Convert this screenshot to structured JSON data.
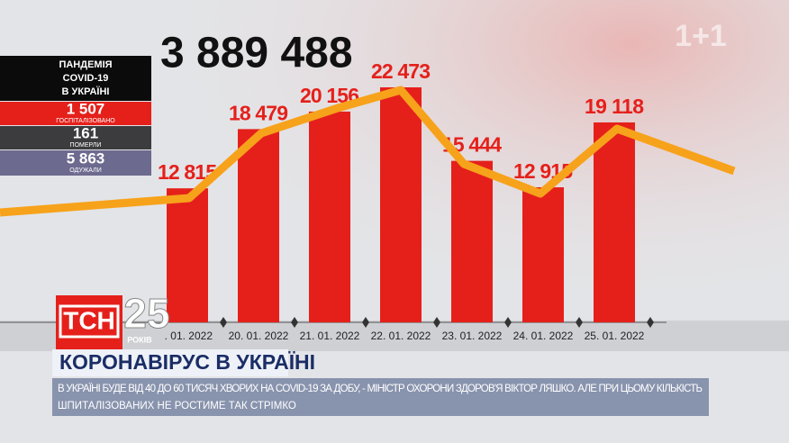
{
  "chart_data": {
    "type": "bar",
    "categories": [
      ". 01. 2022",
      "20. 01. 2022",
      "21. 01. 2022",
      "22. 01. 2022",
      "23. 01. 2022",
      "24. 01. 2022",
      "25. 01. 2022"
    ],
    "values": [
      12815,
      18479,
      20156,
      22473,
      15444,
      12915,
      19118
    ],
    "value_labels": [
      "12 815",
      "18 479",
      "20 156",
      "22 473",
      "15 444",
      "12 915",
      "19 118"
    ],
    "color": "#e5201b"
  },
  "total": "3 889 488",
  "panel": {
    "title": [
      "ПАНДЕМІЯ",
      "COVID-19",
      "В УКРАЇНІ"
    ],
    "stats": [
      {
        "value": "1 507",
        "label": "ГОСПІТАЛІЗОВАНО"
      },
      {
        "value": "161",
        "label": "ПОМЕРЛИ"
      },
      {
        "value": "5 863",
        "label": "ОДУЖАЛИ"
      }
    ]
  },
  "logo": {
    "name": "ТСН",
    "years": "25",
    "years_label": "РОКІВ",
    "channel": "1+1"
  },
  "headline": "КОРОНАВІРУС В УКРАЇНІ",
  "ticker": [
    "В УКРАЇНІ БУДЕ ВІД 40 ДО 60 ТИСЯЧ ХВОРИХ НА COVID-19 ЗА ДОБУ, - МІНІСТР ОХОРОНИ ЗДОРОВ'Я ВІКТОР ЛЯШКО. АЛЕ ПРИ ЦЬОМУ КІЛЬКІСТЬ",
    "ШПИТАЛІЗОВАНИХ НЕ РОСТИМЕ ТАК СТРІМКО"
  ]
}
